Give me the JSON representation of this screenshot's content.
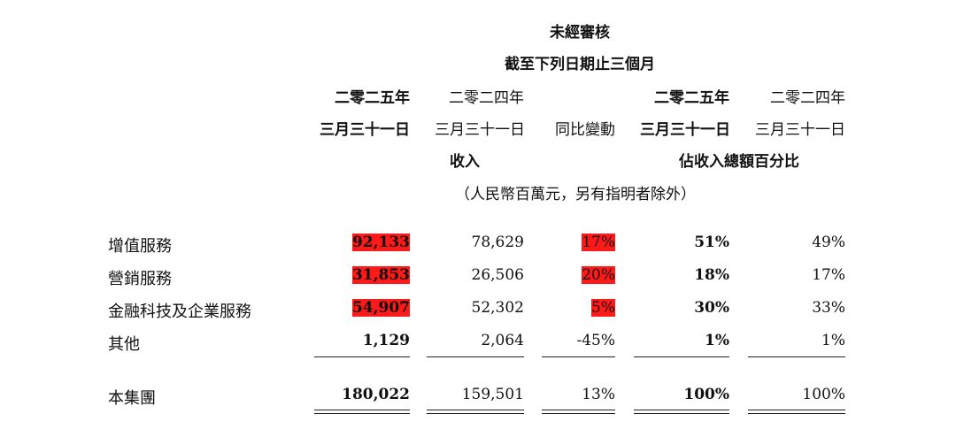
{
  "header": {
    "title": "未經審核",
    "period": "截至下列日期止三個月",
    "col_year": [
      "二零二五年",
      "二零二四年",
      "",
      "二零二五年",
      "二零二四年"
    ],
    "col_date": [
      "三月三十一日",
      "三月三十一日",
      "同比變動",
      "三月三十一日",
      "三月三十一日"
    ],
    "group_revenue": "收入",
    "group_share": "佔收入總額百分比",
    "unit_note": "（人民幣百萬元，另有指明者除外）"
  },
  "rows": [
    {
      "label": "增值服務",
      "c1": "92,133",
      "c2": "78,629",
      "c3": "17%",
      "c4": "51%",
      "c5": "49%"
    },
    {
      "label": "營銷服務",
      "c1": "31,853",
      "c2": "26,506",
      "c3": "20%",
      "c4": "18%",
      "c5": "17%"
    },
    {
      "label": "金融科技及企業服務",
      "c1": "54,907",
      "c2": "52,302",
      "c3": "5%",
      "c4": "30%",
      "c5": "33%"
    },
    {
      "label": "其他",
      "c1": "1,129",
      "c2": "2,064",
      "c3": "-45%",
      "c4": "1%",
      "c5": "1%"
    }
  ],
  "total": {
    "label": "本集團",
    "c1": "180,022",
    "c2": "159,501",
    "c3": "13%",
    "c4": "100%",
    "c5": "100%"
  },
  "highlight_color": "#ff1a1a"
}
